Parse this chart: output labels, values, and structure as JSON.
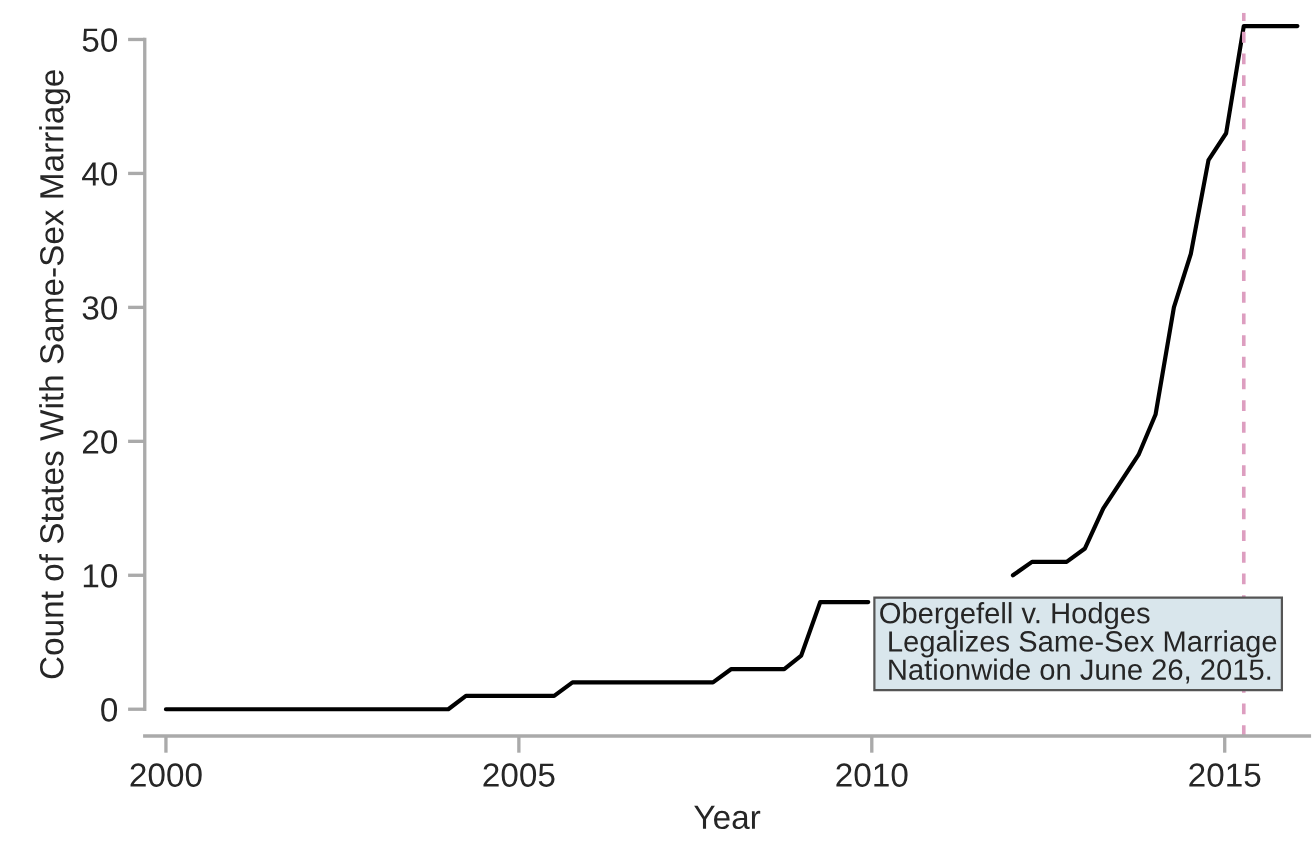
{
  "chart_data": {
    "type": "line",
    "xlabel": "Year",
    "ylabel": "Count of States With Same-Sex Marriage",
    "x": [
      2000,
      2004.0,
      2004.25,
      2005.5,
      2005.76,
      2007.75,
      2008.01,
      2008.76,
      2009.0,
      2009.27,
      2009.95,
      2011.0,
      2012.0,
      2012.27,
      2012.76,
      2013.02,
      2013.28,
      2013.78,
      2014.02,
      2014.28,
      2014.52,
      2014.77,
      2015.02,
      2015.27,
      2016.03
    ],
    "series": [
      {
        "color": "#000000",
        "values": [
          0,
          0,
          1,
          1,
          2,
          2,
          3,
          3,
          4,
          8,
          8,
          null,
          10,
          11,
          11,
          12,
          15,
          19,
          22,
          30,
          34,
          41,
          43,
          51,
          51
        ]
      }
    ],
    "xlim": [
      1999.7,
      2016.2
    ],
    "ylim": [
      -2,
      52
    ],
    "xticks": [
      2000,
      2005,
      2010,
      2015
    ],
    "yticks": [
      0,
      10,
      20,
      30,
      40,
      50
    ],
    "grid": false,
    "legend": false,
    "marker": "none",
    "line_style": "solid",
    "ref_lines": [
      {
        "axis": "x",
        "value": 2015.27,
        "color": "#dd9ec0",
        "line_style": "dashed"
      }
    ],
    "annotations": [
      {
        "text": "Obergefell v. Hodges\n Legalizes Same-Sex Marriage\n Nationwide on June 26, 2015.",
        "x": 2010.02,
        "y": 8
      }
    ]
  }
}
